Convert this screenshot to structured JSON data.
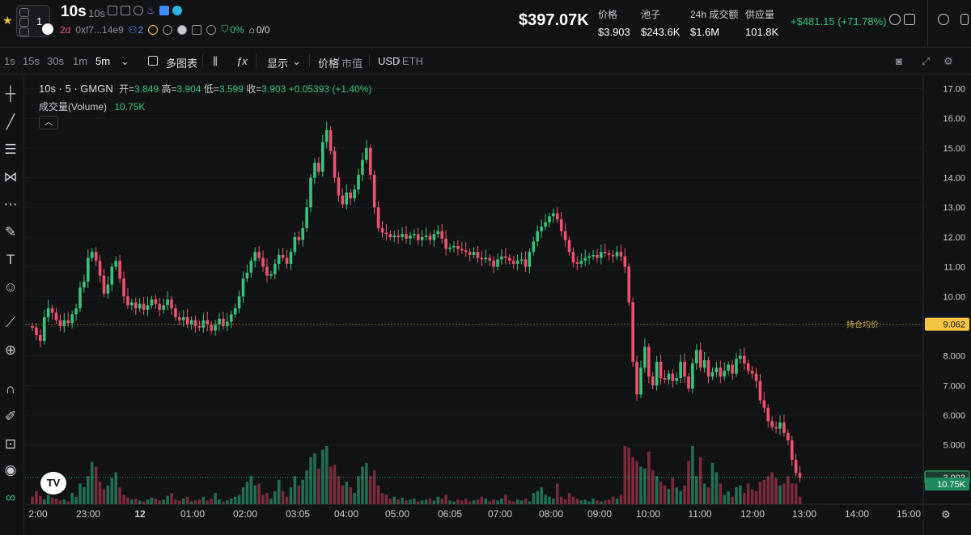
{
  "header": {
    "favorite_icon": "star-icon",
    "avatar_count": "1",
    "token_name": "10s",
    "token_symbol": "10s",
    "age": "2d",
    "address": "0xf7...14e9",
    "holders": "2",
    "top10_pct": "0%",
    "bundles": "0/0",
    "market_cap": "$397.07K",
    "stats": [
      {
        "label": "价格",
        "value": "$3.903"
      },
      {
        "label": "池子",
        "value": "$243.6K"
      },
      {
        "label": "24h 成交额",
        "value": "$1.6M"
      },
      {
        "label": "供应量",
        "value": "101.8K"
      }
    ],
    "change": "+$481.15 (+71.78%)",
    "accent_up": "#35c47a",
    "accent_down": "#f0516e"
  },
  "toolbar": {
    "intervals": [
      "1s",
      "15s",
      "30s",
      "1m",
      "5m"
    ],
    "active_interval": "5m",
    "multi_chart": "多图表",
    "display": "显示",
    "price_label": "价格",
    "mcap_label": "市值",
    "quote_usd": "USD",
    "quote_eth": "ETH"
  },
  "legend": {
    "title": "10s · 5 · GMGN",
    "open_label": "开=",
    "open": "3.849",
    "high_label": "高=",
    "high": "3.904",
    "low_label": "低=",
    "low": "3.599",
    "close_label": "收=",
    "close": "3.903",
    "change": "+0.05393 (+1.40%)",
    "volume_label": "成交量(Volume)",
    "volume_value": "10.75K"
  },
  "chart_data": {
    "type": "candlestick",
    "y_ticks": [
      "17.00",
      "16.00",
      "15.00",
      "14.00",
      "13.00",
      "12.00",
      "11.00",
      "10.00",
      "9.000",
      "8.000",
      "7.000",
      "6.000",
      "5.000",
      "4.000"
    ],
    "ylim": [
      3.0,
      17.45
    ],
    "x_ticks": [
      "2:00",
      "23:00",
      "12",
      "01:00",
      "02:00",
      "03:05",
      "04:00",
      "05:00",
      "06:05",
      "07:00",
      "08:00",
      "09:00",
      "10:00",
      "11:00",
      "12:00",
      "13:00",
      "14:00",
      "15:00"
    ],
    "avg_hold_label": "持仓均价",
    "avg_hold_price": "9.062",
    "last_price": "3.903",
    "last_volume": "10.75K",
    "closes": [
      8.95,
      8.7,
      8.5,
      9.3,
      9.6,
      9.45,
      9.2,
      9.0,
      9.2,
      9.1,
      9.4,
      9.6,
      10.3,
      10.5,
      11.3,
      11.5,
      11.2,
      10.7,
      10.1,
      10.4,
      11.0,
      11.2,
      10.6,
      10.0,
      9.7,
      9.8,
      9.6,
      9.75,
      9.55,
      9.7,
      9.9,
      9.75,
      9.55,
      9.7,
      9.9,
      9.6,
      9.3,
      9.2,
      9.3,
      9.05,
      9.2,
      9.0,
      8.95,
      9.2,
      9.05,
      8.85,
      9.05,
      9.25,
      9.0,
      9.15,
      9.4,
      9.6,
      10.0,
      10.6,
      10.8,
      11.2,
      11.5,
      11.3,
      11.0,
      10.7,
      10.75,
      11.1,
      11.4,
      11.3,
      11.1,
      11.5,
      12.0,
      11.9,
      12.3,
      13.0,
      14.0,
      14.5,
      14.2,
      15.2,
      15.6,
      14.9,
      14.0,
      13.4,
      13.1,
      13.5,
      13.3,
      13.6,
      14.1,
      14.6,
      15.0,
      14.1,
      13.0,
      12.3,
      12.15,
      12.1,
      12.0,
      12.05,
      12.0,
      12.1,
      11.95,
      12.05,
      12.1,
      11.9,
      12.0,
      12.05,
      11.9,
      12.1,
      12.2,
      11.95,
      11.6,
      11.65,
      11.7,
      11.6,
      11.55,
      11.5,
      11.4,
      11.5,
      11.3,
      11.25,
      11.3,
      11.2,
      11.0,
      11.25,
      11.35,
      11.3,
      11.2,
      11.1,
      11.2,
      11.25,
      11.0,
      11.5,
      11.85,
      12.2,
      12.35,
      12.5,
      12.7,
      12.8,
      12.6,
      12.2,
      11.9,
      11.5,
      11.15,
      11.1,
      11.2,
      11.3,
      11.35,
      11.4,
      11.3,
      11.5,
      11.45,
      11.4,
      11.35,
      11.5,
      11.35,
      11.0,
      9.8,
      7.8,
      6.7,
      7.6,
      8.3,
      7.3,
      7.0,
      7.8,
      7.25,
      7.2,
      7.4,
      7.15,
      7.25,
      7.8,
      7.3,
      6.9,
      7.75,
      8.2,
      7.6,
      7.85,
      7.3,
      7.45,
      7.6,
      7.3,
      7.5,
      7.7,
      7.4,
      7.9,
      8.0,
      7.75,
      7.5,
      7.4,
      7.15,
      6.5,
      6.25,
      5.8,
      5.6,
      5.55,
      5.75,
      5.4,
      5.15,
      4.5,
      4.05,
      3.9
    ]
  }
}
